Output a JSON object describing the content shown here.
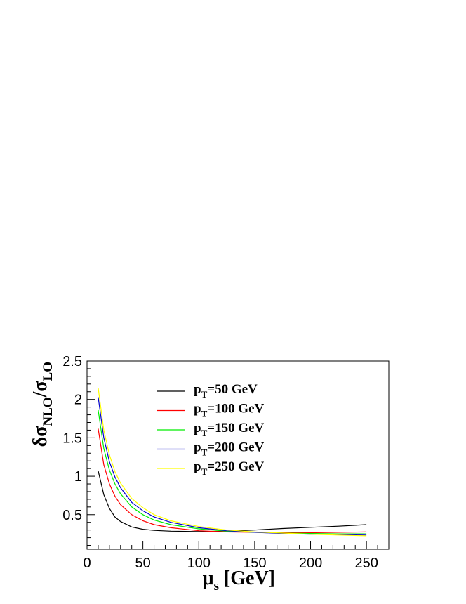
{
  "chart_data": {
    "type": "line",
    "xlabel": {
      "main": "μ",
      "sub": "s",
      "rest": " [GeV]"
    },
    "ylabel": {
      "p1": "δσ",
      "sub1": "NLO",
      "p2": "/σ",
      "sub2": "LO"
    },
    "xlim": [
      0,
      270
    ],
    "ylim": [
      0.05,
      2.5
    ],
    "xticks": [
      0,
      50,
      100,
      150,
      200,
      250
    ],
    "xtick_labels": [
      "0",
      "50",
      "100",
      "150",
      "200",
      "250"
    ],
    "yticks": [
      0.5,
      1,
      1.5,
      2,
      2.5
    ],
    "ytick_labels": [
      "0.5",
      "1",
      "1.5",
      "2",
      "2.5"
    ],
    "grid": false,
    "legend_position": "top-center",
    "series": [
      {
        "name": {
          "p": "p",
          "sub": "T",
          "rest": "=50 GeV"
        },
        "color": "#000000",
        "x": [
          10,
          15,
          20,
          25,
          30,
          40,
          50,
          60,
          75,
          100,
          125,
          135,
          150,
          175,
          200,
          225,
          250
        ],
        "y": [
          1.07,
          0.76,
          0.58,
          0.47,
          0.41,
          0.34,
          0.31,
          0.295,
          0.285,
          0.28,
          0.285,
          0.29,
          0.3,
          0.32,
          0.335,
          0.35,
          0.37
        ]
      },
      {
        "name": {
          "p": "p",
          "sub": "T",
          "rest": "=100 GeV"
        },
        "color": "#ff0000",
        "x": [
          10,
          15,
          20,
          25,
          30,
          40,
          50,
          60,
          75,
          100,
          125,
          150,
          175,
          200,
          225,
          250
        ],
        "y": [
          1.62,
          1.15,
          0.9,
          0.74,
          0.63,
          0.5,
          0.42,
          0.37,
          0.33,
          0.29,
          0.275,
          0.27,
          0.265,
          0.265,
          0.27,
          0.275
        ]
      },
      {
        "name": {
          "p": "p",
          "sub": "T",
          "rest": "=150 GeV"
        },
        "color": "#00ee00",
        "x": [
          10,
          15,
          20,
          25,
          30,
          40,
          50,
          60,
          75,
          100,
          125,
          150,
          175,
          200,
          225,
          250
        ],
        "y": [
          1.86,
          1.36,
          1.08,
          0.9,
          0.77,
          0.6,
          0.5,
          0.43,
          0.37,
          0.315,
          0.285,
          0.27,
          0.26,
          0.255,
          0.25,
          0.25
        ]
      },
      {
        "name": {
          "p": "p",
          "sub": "T",
          "rest": "=200 GeV"
        },
        "color": "#0000cc",
        "x": [
          10,
          15,
          20,
          25,
          30,
          40,
          50,
          60,
          75,
          100,
          125,
          150,
          175,
          200,
          225,
          250
        ],
        "y": [
          2.03,
          1.5,
          1.19,
          0.99,
          0.85,
          0.66,
          0.55,
          0.47,
          0.4,
          0.33,
          0.29,
          0.27,
          0.255,
          0.245,
          0.24,
          0.235
        ]
      },
      {
        "name": {
          "p": "p",
          "sub": "T",
          "rest": "=250 GeV"
        },
        "color": "#ffff00",
        "x": [
          10,
          15,
          20,
          25,
          30,
          40,
          50,
          60,
          75,
          100,
          125,
          150,
          175,
          200,
          225,
          250
        ],
        "y": [
          2.15,
          1.6,
          1.28,
          1.06,
          0.91,
          0.71,
          0.59,
          0.5,
          0.42,
          0.345,
          0.3,
          0.275,
          0.26,
          0.245,
          0.235,
          0.225
        ]
      }
    ]
  }
}
